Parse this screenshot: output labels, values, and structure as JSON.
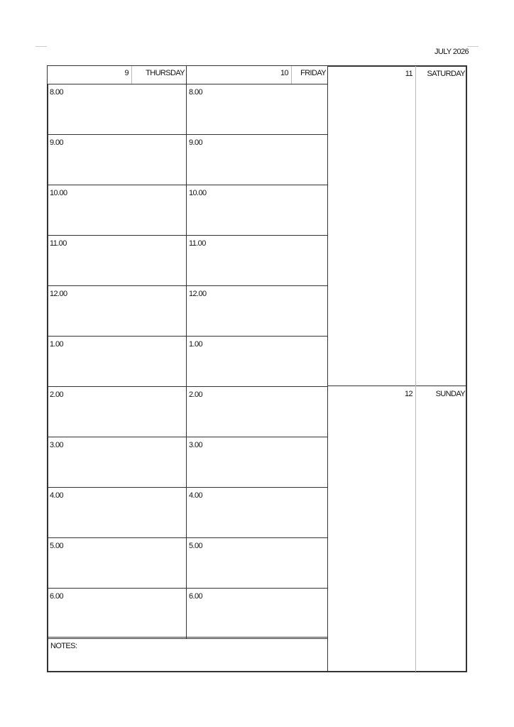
{
  "month_title": "JULY 2026",
  "days": [
    {
      "number": "9",
      "name": "THURSDAY"
    },
    {
      "number": "10",
      "name": "FRIDAY"
    },
    {
      "number": "11",
      "name": "SATURDAY"
    },
    {
      "number": "12",
      "name": "SUNDAY"
    }
  ],
  "times": [
    "8.00",
    "9.00",
    "10.00",
    "11.00",
    "12.00",
    "1.00",
    "2.00",
    "3.00",
    "4.00",
    "5.00",
    "6.00"
  ],
  "notes_label": "NOTES:"
}
